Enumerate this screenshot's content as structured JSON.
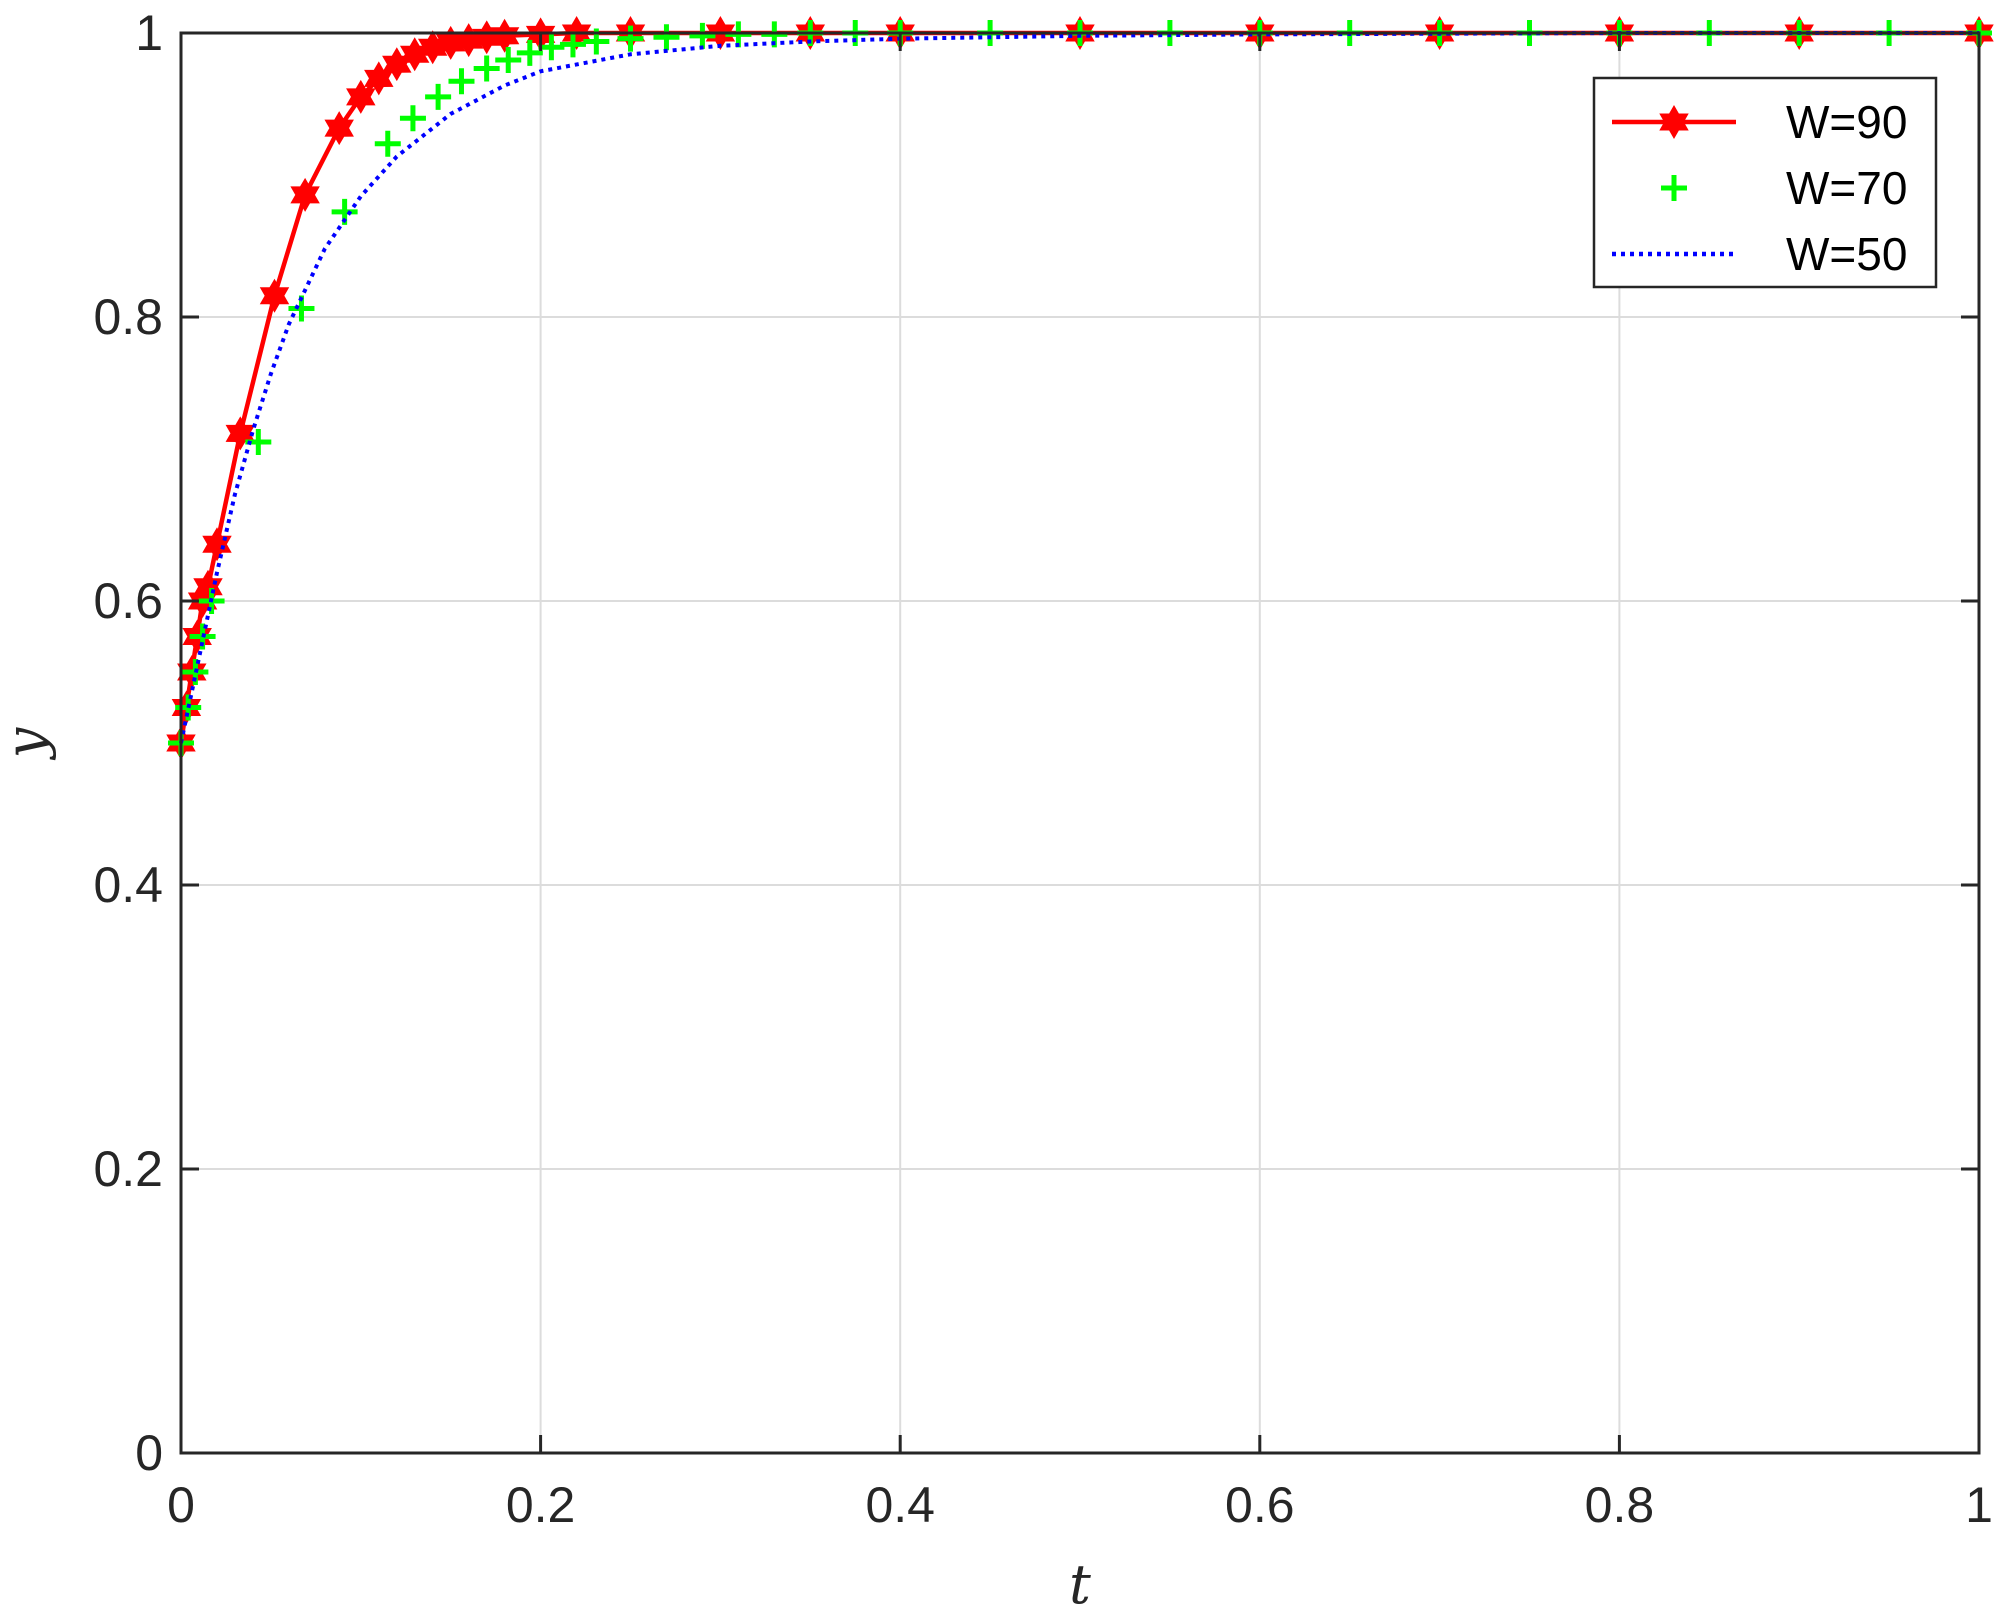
{
  "chart_data": {
    "type": "line",
    "title": "",
    "xlabel": "t",
    "ylabel": "y",
    "xlim": [
      0,
      1
    ],
    "ylim": [
      0,
      1
    ],
    "xticks": [
      0,
      0.2,
      0.4,
      0.6,
      0.8,
      1
    ],
    "yticks": [
      0,
      0.2,
      0.4,
      0.6,
      0.8,
      1
    ],
    "xtick_labels": [
      "0",
      "0.2",
      "0.4",
      "0.6",
      "0.8",
      "1"
    ],
    "ytick_labels": [
      "0",
      "0.2",
      "0.4",
      "0.6",
      "0.8",
      "1"
    ],
    "grid": true,
    "legend_position": "top-right",
    "series": [
      {
        "name": "W=90",
        "color": "#ff0000",
        "line_style": "solid",
        "marker": "hexagram",
        "x": [
          0,
          0.003,
          0.006,
          0.009,
          0.012,
          0.015,
          0.02,
          0.033,
          0.052,
          0.069,
          0.088,
          0.1,
          0.11,
          0.12,
          0.13,
          0.14,
          0.15,
          0.16,
          0.17,
          0.18,
          0.2,
          0.22,
          0.25,
          0.3,
          0.35,
          0.4,
          0.5,
          0.6,
          0.7,
          0.8,
          0.9,
          1.0
        ],
        "y": [
          0.5,
          0.525,
          0.55,
          0.575,
          0.6,
          0.61,
          0.64,
          0.718,
          0.815,
          0.886,
          0.933,
          0.955,
          0.968,
          0.978,
          0.985,
          0.99,
          0.993,
          0.995,
          0.997,
          0.998,
          0.999,
          1.0,
          1.0,
          1.0,
          1.0,
          1.0,
          1.0,
          1.0,
          1.0,
          1.0,
          1.0,
          1.0
        ]
      },
      {
        "name": "W=70",
        "color": "#00ff00",
        "line_style": "none",
        "marker": "plus",
        "x": [
          0,
          0.004,
          0.008,
          0.012,
          0.017,
          0.043,
          0.067,
          0.091,
          0.115,
          0.129,
          0.143,
          0.156,
          0.17,
          0.182,
          0.194,
          0.206,
          0.218,
          0.231,
          0.25,
          0.27,
          0.29,
          0.31,
          0.33,
          0.35,
          0.375,
          0.4,
          0.45,
          0.5,
          0.55,
          0.6,
          0.65,
          0.7,
          0.75,
          0.8,
          0.85,
          0.9,
          0.95,
          1.0
        ],
        "y": [
          0.5,
          0.525,
          0.55,
          0.575,
          0.6,
          0.712,
          0.806,
          0.874,
          0.922,
          0.94,
          0.955,
          0.966,
          0.975,
          0.981,
          0.986,
          0.99,
          0.992,
          0.994,
          0.996,
          0.997,
          0.998,
          0.999,
          0.999,
          1.0,
          1.0,
          1.0,
          1.0,
          1.0,
          1.0,
          1.0,
          1.0,
          1.0,
          1.0,
          1.0,
          1.0,
          1.0,
          1.0,
          1.0
        ]
      },
      {
        "name": "W=50",
        "color": "#0000ff",
        "line_style": "dotted",
        "marker": "none",
        "x": [
          0,
          0.01,
          0.02,
          0.03,
          0.04,
          0.05,
          0.06,
          0.08,
          0.1,
          0.12,
          0.15,
          0.18,
          0.2,
          0.25,
          0.3,
          0.35,
          0.4,
          0.5,
          0.6,
          0.8,
          1.0
        ],
        "y": [
          0.5,
          0.56,
          0.62,
          0.675,
          0.72,
          0.76,
          0.795,
          0.848,
          0.885,
          0.913,
          0.943,
          0.963,
          0.973,
          0.985,
          0.991,
          0.994,
          0.996,
          0.998,
          0.999,
          1.0,
          1.0
        ]
      }
    ]
  }
}
